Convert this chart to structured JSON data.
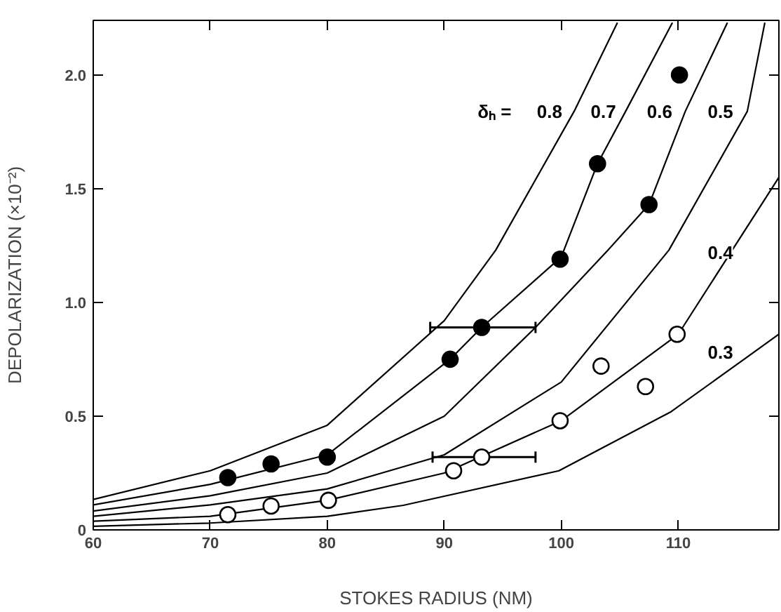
{
  "chart_data": {
    "type": "line",
    "xlabel": "STOKES RADIUS (NM)",
    "ylabel": "DEPOLARIZATION (×10⁻²)",
    "xlim": [
      60,
      118.6
    ],
    "ylim": [
      0,
      2.24
    ],
    "xticks": [
      60,
      70,
      80,
      90,
      100,
      110
    ],
    "yticks": [
      {
        "value": 0,
        "label": "0"
      },
      {
        "value": 0.5,
        "label": "0.5"
      },
      {
        "value": 1,
        "label": "1.0"
      },
      {
        "value": 1.5,
        "label": "1.5"
      },
      {
        "value": 2,
        "label": "2.0"
      }
    ],
    "grid": false,
    "series": [
      {
        "color": "#000000",
        "x": [
          60,
          70,
          80,
          90,
          94.4,
          101.1,
          104.8
        ],
        "values": [
          0.134,
          0.26,
          0.46,
          0.92,
          1.23,
          1.84,
          2.23
        ]
      },
      {
        "color": "#000000",
        "x": [
          60,
          70,
          80,
          90.5,
          93.2,
          100,
          103.1,
          105.5,
          109.5
        ],
        "values": [
          0.11,
          0.2,
          0.33,
          0.75,
          0.89,
          1.2,
          1.61,
          1.84,
          2.23
        ]
      },
      {
        "color": "#000000",
        "x": [
          60,
          70,
          80,
          90,
          97.8,
          104,
          107.5,
          110.6,
          114.2
        ],
        "values": [
          0.083,
          0.15,
          0.25,
          0.5,
          0.89,
          1.23,
          1.43,
          1.84,
          2.23
        ]
      },
      {
        "color": "#000000",
        "x": [
          60,
          70,
          80,
          90,
          100,
          109.2,
          115.9,
          117.4
        ],
        "values": [
          0.06,
          0.11,
          0.18,
          0.33,
          0.65,
          1.23,
          1.84,
          2.23
        ]
      },
      {
        "color": "#000000",
        "x": [
          60,
          70,
          80,
          90,
          100,
          110,
          118.6
        ],
        "values": [
          0.038,
          0.06,
          0.13,
          0.25,
          0.48,
          0.86,
          1.55
        ]
      },
      {
        "color": "#000000",
        "x": [
          60,
          70,
          80,
          86.5,
          99.8,
          109.4,
          118.6
        ],
        "values": [
          0.016,
          0.03,
          0.06,
          0.108,
          0.26,
          0.52,
          0.86
        ]
      },
      {
        "type": "scatter",
        "marker": "circle",
        "color": "#000000",
        "x": [
          71.5,
          75.2,
          80,
          90.5,
          93.2,
          99.9,
          103.1,
          107.5,
          110.1
        ],
        "values": [
          0.23,
          0.29,
          0.32,
          0.75,
          0.89,
          1.19,
          1.61,
          1.43,
          2.0
        ],
        "xerrors": [
          null,
          null,
          null,
          null,
          [
            88.8,
            97.8
          ],
          null,
          null,
          null,
          null
        ]
      },
      {
        "type": "scatter",
        "marker": "circle",
        "color": "#ffffff",
        "x": [
          71.5,
          75.2,
          80.1,
          90.8,
          93.2,
          99.9,
          103.4,
          107.2,
          109.9
        ],
        "values": [
          0.067,
          0.105,
          0.13,
          0.26,
          0.32,
          0.48,
          0.72,
          0.63,
          0.86
        ],
        "xerrors": [
          null,
          null,
          null,
          null,
          [
            89.0,
            97.8
          ],
          null,
          null,
          null,
          null
        ]
      }
    ],
    "annotations": [
      {
        "text": "δₕ =",
        "x": 94.3,
        "y": 1.84
      },
      {
        "text": "0.8",
        "x": 99,
        "y": 1.84
      },
      {
        "text": "0.7",
        "x": 103.6,
        "y": 1.84
      },
      {
        "text": "0.6",
        "x": 108.4,
        "y": 1.84
      },
      {
        "text": "0.5",
        "x": 113.6,
        "y": 1.84
      },
      {
        "text": "0.4",
        "x": 113.6,
        "y": 1.22
      },
      {
        "text": "0.3",
        "x": 113.6,
        "y": 0.78
      }
    ]
  }
}
